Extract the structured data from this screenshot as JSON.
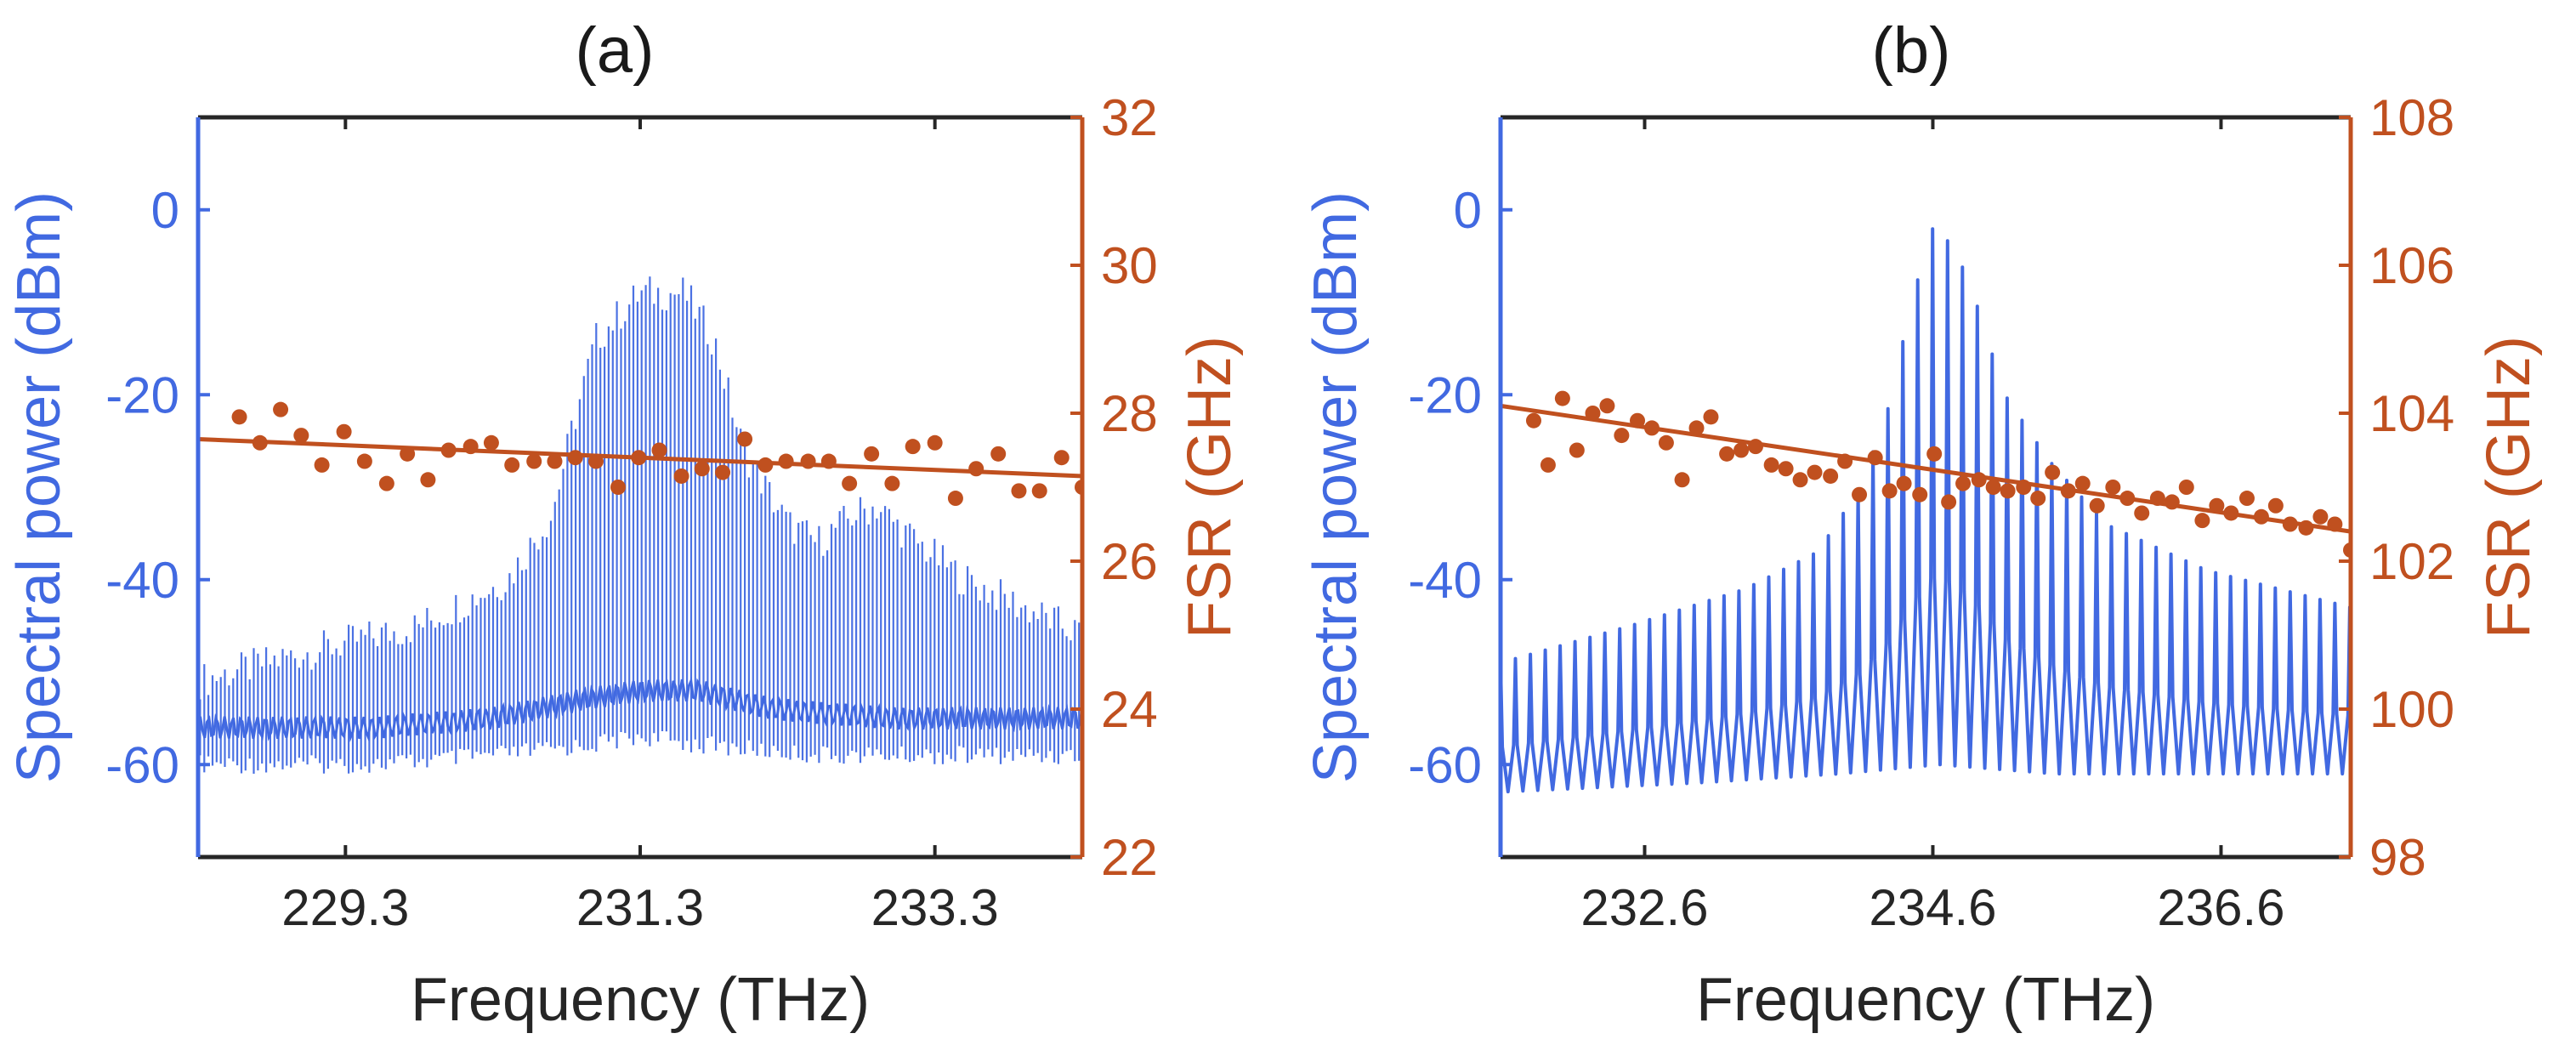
{
  "colors": {
    "spectrum": "#4169e1",
    "fsr": "#c0501f",
    "axis_dark": "#262626"
  },
  "chart_data": [
    {
      "panel": "a",
      "title": "(a)",
      "type": "line",
      "xlabel": "Frequency (THz)",
      "ylabel_left": "Spectral power (dBm)",
      "ylabel_right": "FSR (GHz)",
      "xlim": [
        228.3,
        234.3
      ],
      "ylim_left": [
        -70,
        10
      ],
      "ylim_right": [
        22,
        32
      ],
      "xticks": [
        229.3,
        231.3,
        233.3
      ],
      "xtick_labels": [
        "229.3",
        "231.3",
        "233.3"
      ],
      "yticks_left": [
        0,
        -20,
        -40,
        -60
      ],
      "ytick_labels_left": [
        "0",
        "-20",
        "-40",
        "-60"
      ],
      "yticks_right": [
        22,
        24,
        26,
        28,
        30,
        32
      ],
      "ytick_labels_right": [
        "22",
        "24",
        "26",
        "28",
        "30",
        "32"
      ],
      "spectrum": {
        "axis": "left",
        "line_spacing_thz": 0.028,
        "floor_points": [
          [
            228.3,
            -56
          ],
          [
            229.5,
            -56
          ],
          [
            230.3,
            -55
          ],
          [
            230.9,
            -53
          ],
          [
            231.3,
            -52
          ],
          [
            231.7,
            -52
          ],
          [
            232.2,
            -54
          ],
          [
            233.0,
            -55
          ],
          [
            234.3,
            -55
          ]
        ],
        "peak_points": [
          [
            228.3,
            -51
          ],
          [
            229.0,
            -48
          ],
          [
            229.8,
            -45
          ],
          [
            230.4,
            -40
          ],
          [
            230.7,
            -33
          ],
          [
            230.85,
            -23
          ],
          [
            231.0,
            -14
          ],
          [
            231.3,
            -9
          ],
          [
            231.6,
            -9
          ],
          [
            231.8,
            -14
          ],
          [
            232.0,
            -26
          ],
          [
            232.3,
            -34
          ],
          [
            232.5,
            -36
          ],
          [
            232.75,
            -33
          ],
          [
            232.9,
            -32
          ],
          [
            233.1,
            -35
          ],
          [
            233.5,
            -40
          ],
          [
            234.3,
            -46
          ]
        ],
        "trough_points": [
          [
            228.3,
            -59
          ],
          [
            229.5,
            -59
          ],
          [
            230.3,
            -58
          ],
          [
            230.9,
            -57
          ],
          [
            231.3,
            -56
          ],
          [
            231.8,
            -57
          ],
          [
            232.5,
            -58
          ],
          [
            234.3,
            -58
          ]
        ]
      },
      "fsr_points": {
        "axis": "right",
        "x": [
          228.58,
          228.72,
          228.86,
          229.0,
          229.14,
          229.29,
          229.43,
          229.58,
          229.72,
          229.86,
          230.0,
          230.15,
          230.29,
          230.43,
          230.58,
          230.72,
          230.86,
          231.0,
          231.15,
          231.29,
          231.43,
          231.58,
          231.72,
          231.86,
          232.01,
          232.15,
          232.29,
          232.44,
          232.58,
          232.72,
          232.87,
          233.01,
          233.15,
          233.3,
          233.44,
          233.58,
          233.73,
          233.87,
          234.01,
          234.16,
          234.3
        ],
        "y": [
          27.95,
          27.6,
          28.05,
          27.7,
          27.3,
          27.75,
          27.35,
          27.05,
          27.45,
          27.1,
          27.5,
          27.55,
          27.6,
          27.3,
          27.35,
          27.35,
          27.4,
          27.35,
          27.0,
          27.4,
          27.5,
          27.15,
          27.25,
          27.2,
          27.65,
          27.3,
          27.35,
          27.35,
          27.35,
          27.05,
          27.45,
          27.05,
          27.55,
          27.6,
          26.85,
          27.25,
          27.45,
          26.95,
          26.95,
          27.4,
          27.0
        ]
      },
      "fsr_fit": {
        "axis": "right",
        "x": [
          228.3,
          234.3
        ],
        "y": [
          27.65,
          27.15
        ]
      }
    },
    {
      "panel": "b",
      "title": "(b)",
      "type": "line",
      "xlabel": "Frequency (THz)",
      "ylabel_left": "Spectral power (dBm)",
      "ylabel_right": "FSR (GHz)",
      "xlim": [
        231.6,
        237.5
      ],
      "ylim_left": [
        -70,
        10
      ],
      "ylim_right": [
        98,
        108
      ],
      "xticks": [
        232.6,
        234.6,
        236.6
      ],
      "xtick_labels": [
        "232.6",
        "234.6",
        "236.6"
      ],
      "yticks_left": [
        0,
        -20,
        -40,
        -60
      ],
      "ytick_labels_left": [
        "0",
        "-20",
        "-40",
        "-60"
      ],
      "yticks_right": [
        98,
        100,
        102,
        104,
        106,
        108
      ],
      "ytick_labels_right": [
        "98",
        "100",
        "102",
        "104",
        "106",
        "108"
      ],
      "spectrum": {
        "axis": "left",
        "line_spacing_thz": 0.1034,
        "floor_points": [
          [
            231.6,
            -63
          ],
          [
            233.0,
            -62
          ],
          [
            234.0,
            -61
          ],
          [
            234.7,
            -60
          ],
          [
            235.5,
            -61
          ],
          [
            236.5,
            -61
          ],
          [
            237.5,
            -61
          ]
        ],
        "peak_points": [
          [
            231.6,
            -49
          ],
          [
            232.5,
            -45
          ],
          [
            233.3,
            -41
          ],
          [
            233.8,
            -37
          ],
          [
            234.1,
            -30
          ],
          [
            234.3,
            -21
          ],
          [
            234.45,
            -10
          ],
          [
            234.6,
            -2
          ],
          [
            234.75,
            -4
          ],
          [
            234.9,
            -10
          ],
          [
            235.1,
            -20
          ],
          [
            235.4,
            -27
          ],
          [
            235.8,
            -34
          ],
          [
            236.5,
            -39
          ],
          [
            237.5,
            -43
          ]
        ],
        "trough_points": [
          [
            231.6,
            -63
          ],
          [
            237.5,
            -61
          ]
        ]
      },
      "fsr_points": {
        "axis": "right",
        "x": [
          231.83,
          231.93,
          232.03,
          232.13,
          232.24,
          232.34,
          232.44,
          232.55,
          232.65,
          232.75,
          232.86,
          232.96,
          233.06,
          233.17,
          233.27,
          233.37,
          233.48,
          233.58,
          233.68,
          233.78,
          233.89,
          233.99,
          234.09,
          234.2,
          234.3,
          234.4,
          234.51,
          234.61,
          234.71,
          234.81,
          234.92,
          235.02,
          235.12,
          235.23,
          235.33,
          235.43,
          235.54,
          235.64,
          235.74,
          235.85,
          235.95,
          236.05,
          236.16,
          236.26,
          236.36,
          236.47,
          236.57,
          236.67,
          236.78,
          236.88,
          236.98,
          237.08,
          237.19,
          237.29,
          237.39,
          237.5
        ],
        "y": [
          103.9,
          103.3,
          104.2,
          103.5,
          104.0,
          104.1,
          103.7,
          103.9,
          103.8,
          103.6,
          103.1,
          103.8,
          103.95,
          103.45,
          103.5,
          103.55,
          103.3,
          103.25,
          103.1,
          103.2,
          103.15,
          103.35,
          102.9,
          103.4,
          102.95,
          103.05,
          102.9,
          103.45,
          102.8,
          103.05,
          103.1,
          103.0,
          102.95,
          103.0,
          102.85,
          103.2,
          102.95,
          103.05,
          102.75,
          103.0,
          102.85,
          102.65,
          102.85,
          102.8,
          103.0,
          102.55,
          102.75,
          102.65,
          102.85,
          102.6,
          102.75,
          102.5,
          102.45,
          102.6,
          102.5,
          102.15
        ]
      },
      "fsr_fit": {
        "axis": "right",
        "x": [
          231.6,
          237.5
        ],
        "y": [
          104.1,
          102.4
        ]
      }
    }
  ]
}
